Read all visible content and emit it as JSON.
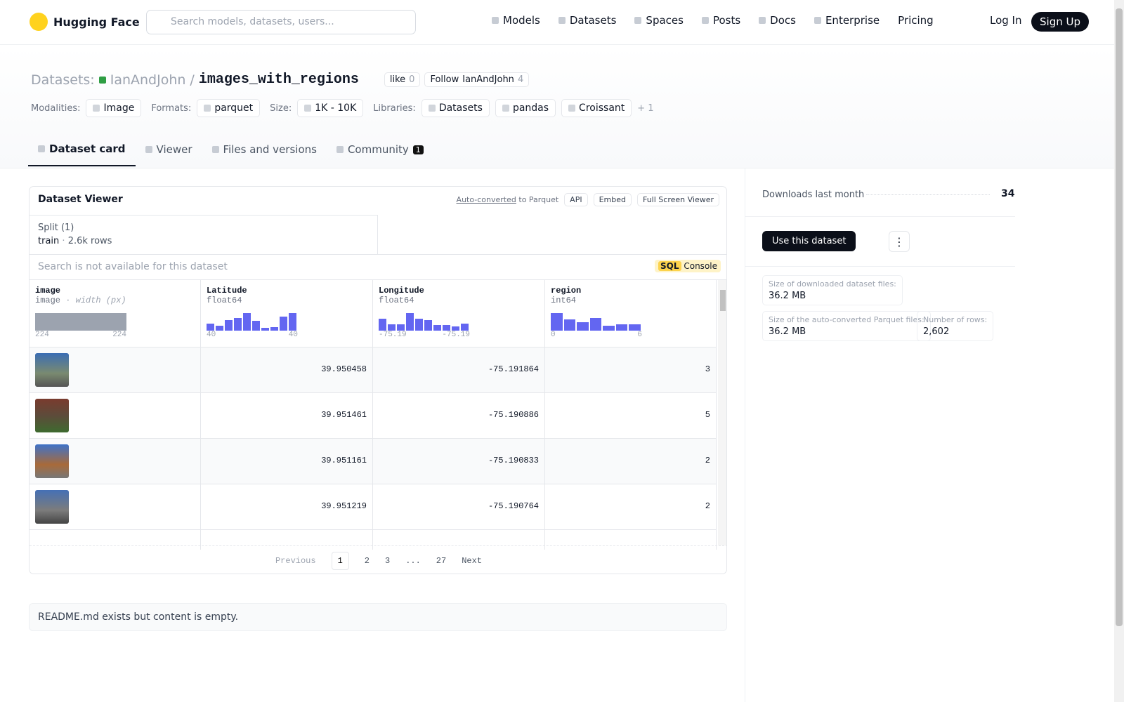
{
  "nav": {
    "brand": "Hugging Face",
    "search_placeholder": "Search models, datasets, users...",
    "links": [
      "Models",
      "Datasets",
      "Spaces",
      "Posts",
      "Docs",
      "Enterprise",
      "Pricing"
    ],
    "login": "Log In",
    "signup": "Sign Up"
  },
  "header": {
    "section": "Datasets:",
    "owner": "IanAndJohn",
    "separator": "/",
    "name": "images_with_regions",
    "like_label": "like",
    "like_count": 0,
    "follow_label": "Follow",
    "follow_name": "IanAndJohn",
    "follow_count": 4,
    "tags": [
      {
        "label": "Modalities:",
        "items": [
          "Image"
        ]
      },
      {
        "label": "Formats:",
        "items": [
          "parquet"
        ]
      },
      {
        "label": "Size:",
        "items": [
          "1K - 10K"
        ]
      },
      {
        "label": "Libraries:",
        "items": [
          "Datasets",
          "pandas",
          "Croissant"
        ]
      }
    ],
    "more": "+ 1"
  },
  "tabs": [
    {
      "label": "Dataset card"
    },
    {
      "label": "Viewer"
    },
    {
      "label": "Files and versions"
    },
    {
      "label": "Community",
      "badge": 1
    }
  ],
  "viewer": {
    "title": "Dataset Viewer",
    "auto_converted": "Auto-converted",
    "to_parquet": "to Parquet",
    "buttons": [
      "API",
      "Embed",
      "Full Screen Viewer"
    ],
    "split_label": "Split (1)",
    "split": "train",
    "split_rows": "2.6k rows",
    "search_placeholder": "Search is not available for this dataset",
    "sql": "SQL",
    "console": "Console",
    "columns": [
      {
        "name": "image",
        "dtype": "image",
        "extra": "width (px)",
        "min": 224,
        "max": 224,
        "histogram": [
          24
        ]
      },
      {
        "name": "Latitude",
        "dtype": "float64",
        "min": 40,
        "max": 40,
        "histogram": [
          10,
          7,
          14,
          17,
          24,
          13,
          4,
          5,
          19,
          24
        ]
      },
      {
        "name": "Longitude",
        "dtype": "float64",
        "min": -75.19,
        "max": -75.19,
        "histogram": [
          16,
          9,
          9,
          24,
          16,
          14,
          8,
          8,
          6,
          10
        ]
      },
      {
        "name": "region",
        "dtype": "int64",
        "min": 0,
        "max": 6,
        "histogram": [
          24,
          15,
          12,
          17,
          7,
          9,
          9
        ]
      }
    ],
    "rows": [
      [
        39.950458,
        -75.191864,
        3
      ],
      [
        39.951461,
        -75.190886,
        5
      ],
      [
        39.951161,
        -75.190833,
        2
      ],
      [
        39.951219,
        -75.190764,
        2
      ]
    ],
    "pagination": {
      "previous": "Previous",
      "pages": [
        1,
        2,
        3,
        "...",
        27
      ],
      "next": "Next"
    }
  },
  "readme": "README.md exists but content is empty.",
  "sidebar": {
    "downloads_label": "Downloads last month",
    "downloads": 34,
    "use_button": "Use this dataset",
    "stats": [
      {
        "label": "Size of downloaded dataset files:",
        "value": "36.2 MB"
      },
      {
        "label": "Size of the auto-converted Parquet files:",
        "value": "36.2 MB"
      },
      {
        "label": "Number of rows:",
        "value": "2,602"
      }
    ]
  }
}
